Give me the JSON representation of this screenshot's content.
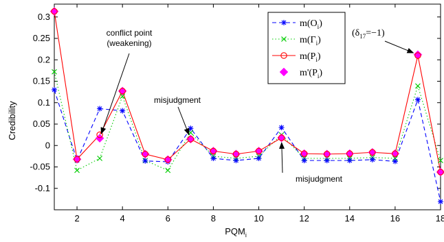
{
  "chart_data": {
    "type": "line",
    "xlabel": "PQM",
    "xlabel_subscript": "i",
    "ylabel": "Credibility",
    "xlim": [
      1,
      18
    ],
    "ylim": [
      -0.15,
      0.33
    ],
    "xticks": [
      2,
      4,
      6,
      8,
      10,
      12,
      14,
      16,
      18
    ],
    "yticks": [
      -0.1,
      -0.05,
      0,
      0.05,
      0.1,
      0.15,
      0.2,
      0.25,
      0.3
    ],
    "ytick_labels": [
      "-0.1",
      "-0.05",
      "0",
      "0.05",
      "0.1",
      "0.15",
      "0.2",
      "0.25",
      "0.3"
    ],
    "grid": false,
    "legend_position": "top-right",
    "x": [
      1,
      2,
      3,
      4,
      5,
      6,
      7,
      8,
      9,
      10,
      11,
      12,
      13,
      14,
      15,
      16,
      17,
      18
    ],
    "series": [
      {
        "name": "m(O",
        "name_sub": "i",
        "name_tail": ")",
        "color": "#0000ff",
        "line": "dashed",
        "marker": "asterisk",
        "values": [
          0.13,
          -0.035,
          0.086,
          0.081,
          -0.036,
          -0.038,
          0.04,
          -0.03,
          -0.035,
          -0.03,
          0.042,
          -0.035,
          -0.035,
          -0.035,
          -0.033,
          -0.037,
          0.107,
          -0.131
        ]
      },
      {
        "name": "m(Γ",
        "name_sub": "i",
        "name_tail": ")",
        "color": "#00cc00",
        "line": "dotted",
        "marker": "x",
        "values": [
          0.172,
          -0.058,
          -0.03,
          0.115,
          -0.035,
          -0.058,
          0.03,
          -0.025,
          -0.03,
          -0.025,
          0.025,
          -0.03,
          -0.03,
          -0.03,
          -0.028,
          -0.03,
          0.139,
          -0.035
        ]
      },
      {
        "name": "m(P",
        "name_sub": "i",
        "name_tail": ")",
        "color": "#ff0000",
        "line": "solid",
        "marker": "circle",
        "values": [
          0.313,
          -0.032,
          0.025,
          0.127,
          -0.02,
          -0.033,
          0.015,
          -0.013,
          -0.02,
          -0.013,
          0.018,
          -0.019,
          -0.02,
          -0.019,
          -0.016,
          -0.019,
          0.21,
          -0.062
        ]
      },
      {
        "name": "m'(P",
        "name_sub": "i",
        "name_tail": ")",
        "color": "#ff00ff",
        "line": "none",
        "marker": "diamond",
        "values": [
          0.313,
          -0.032,
          0.017,
          0.127,
          -0.02,
          -0.033,
          0.015,
          -0.013,
          -0.02,
          -0.013,
          0.018,
          -0.019,
          -0.02,
          -0.019,
          -0.016,
          -0.019,
          0.212,
          -0.062
        ]
      }
    ],
    "annotations": [
      {
        "lines": [
          "conflict point",
          "(weakening)"
        ],
        "point": [
          3,
          0.017
        ]
      },
      {
        "lines": [
          "misjudgment"
        ],
        "point": [
          7,
          0.015
        ]
      },
      {
        "lines": [
          "misjudgment"
        ],
        "point": [
          11,
          0.018
        ]
      },
      {
        "lines": [
          "(δ",
          "17",
          "=−1)"
        ],
        "point": [
          17,
          0.212
        ]
      }
    ]
  }
}
